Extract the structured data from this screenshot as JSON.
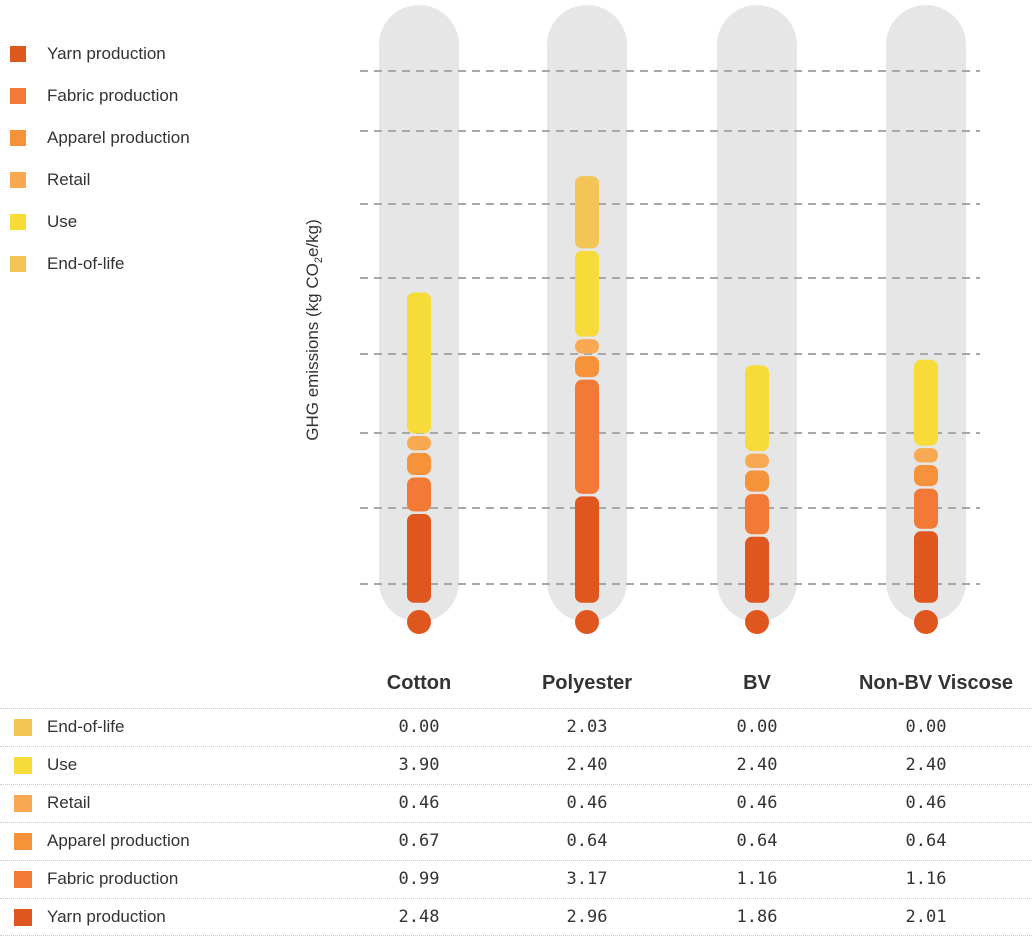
{
  "legend": {
    "items": [
      {
        "label": "Yarn production",
        "color": "#e0561f"
      },
      {
        "label": "Fabric production",
        "color": "#f27a36"
      },
      {
        "label": "Apparel production",
        "color": "#f5923a"
      },
      {
        "label": "Retail",
        "color": "#f9a952"
      },
      {
        "label": "Use",
        "color": "#f7dc39"
      },
      {
        "label": "End-of-life",
        "color": "#f2c556"
      }
    ]
  },
  "chart_data": {
    "type": "bar",
    "stacked": true,
    "ylabel_main": "GHG emissions (kg CO",
    "ylabel_sub": "2",
    "ylabel_end": "e/kg)",
    "grid": true,
    "categories": [
      "Cotton",
      "Polyester",
      "BV",
      "Non-BV Viscose"
    ],
    "series": [
      {
        "name": "Yarn production",
        "color": "#e0561f",
        "values": [
          2.48,
          2.96,
          1.86,
          2.01
        ]
      },
      {
        "name": "Fabric production",
        "color": "#f27a36",
        "values": [
          0.99,
          3.17,
          1.16,
          1.16
        ]
      },
      {
        "name": "Apparel production",
        "color": "#f5923a",
        "values": [
          0.67,
          0.64,
          0.64,
          0.64
        ]
      },
      {
        "name": "Retail",
        "color": "#f9a952",
        "values": [
          0.46,
          0.46,
          0.46,
          0.46
        ]
      },
      {
        "name": "Use",
        "color": "#f7dc39",
        "values": [
          3.9,
          2.4,
          2.4,
          2.4
        ]
      },
      {
        "name": "End-of-life",
        "color": "#f2c556",
        "values": [
          0.0,
          2.03,
          0.0,
          0.0
        ]
      }
    ]
  },
  "table": {
    "headers": [
      "Cotton",
      "Polyester",
      "BV",
      "Non-BV Viscose"
    ],
    "rows": [
      {
        "label": "End-of-life",
        "color": "#f2c556",
        "values": [
          "0.00",
          "2.03",
          "0.00",
          "0.00"
        ]
      },
      {
        "label": "Use",
        "color": "#f7dc39",
        "values": [
          "3.90",
          "2.40",
          "2.40",
          "2.40"
        ]
      },
      {
        "label": "Retail",
        "color": "#f9a952",
        "values": [
          "0.46",
          "0.46",
          "0.46",
          "0.46"
        ]
      },
      {
        "label": "Apparel production",
        "color": "#f5923a",
        "values": [
          "0.67",
          "0.64",
          "0.64",
          "0.64"
        ]
      },
      {
        "label": "Fabric production",
        "color": "#f27a36",
        "values": [
          "0.99",
          "3.17",
          "1.16",
          "1.16"
        ]
      },
      {
        "label": "Yarn production",
        "color": "#e0561f",
        "values": [
          "2.48",
          "2.96",
          "1.86",
          "2.01"
        ]
      }
    ]
  }
}
